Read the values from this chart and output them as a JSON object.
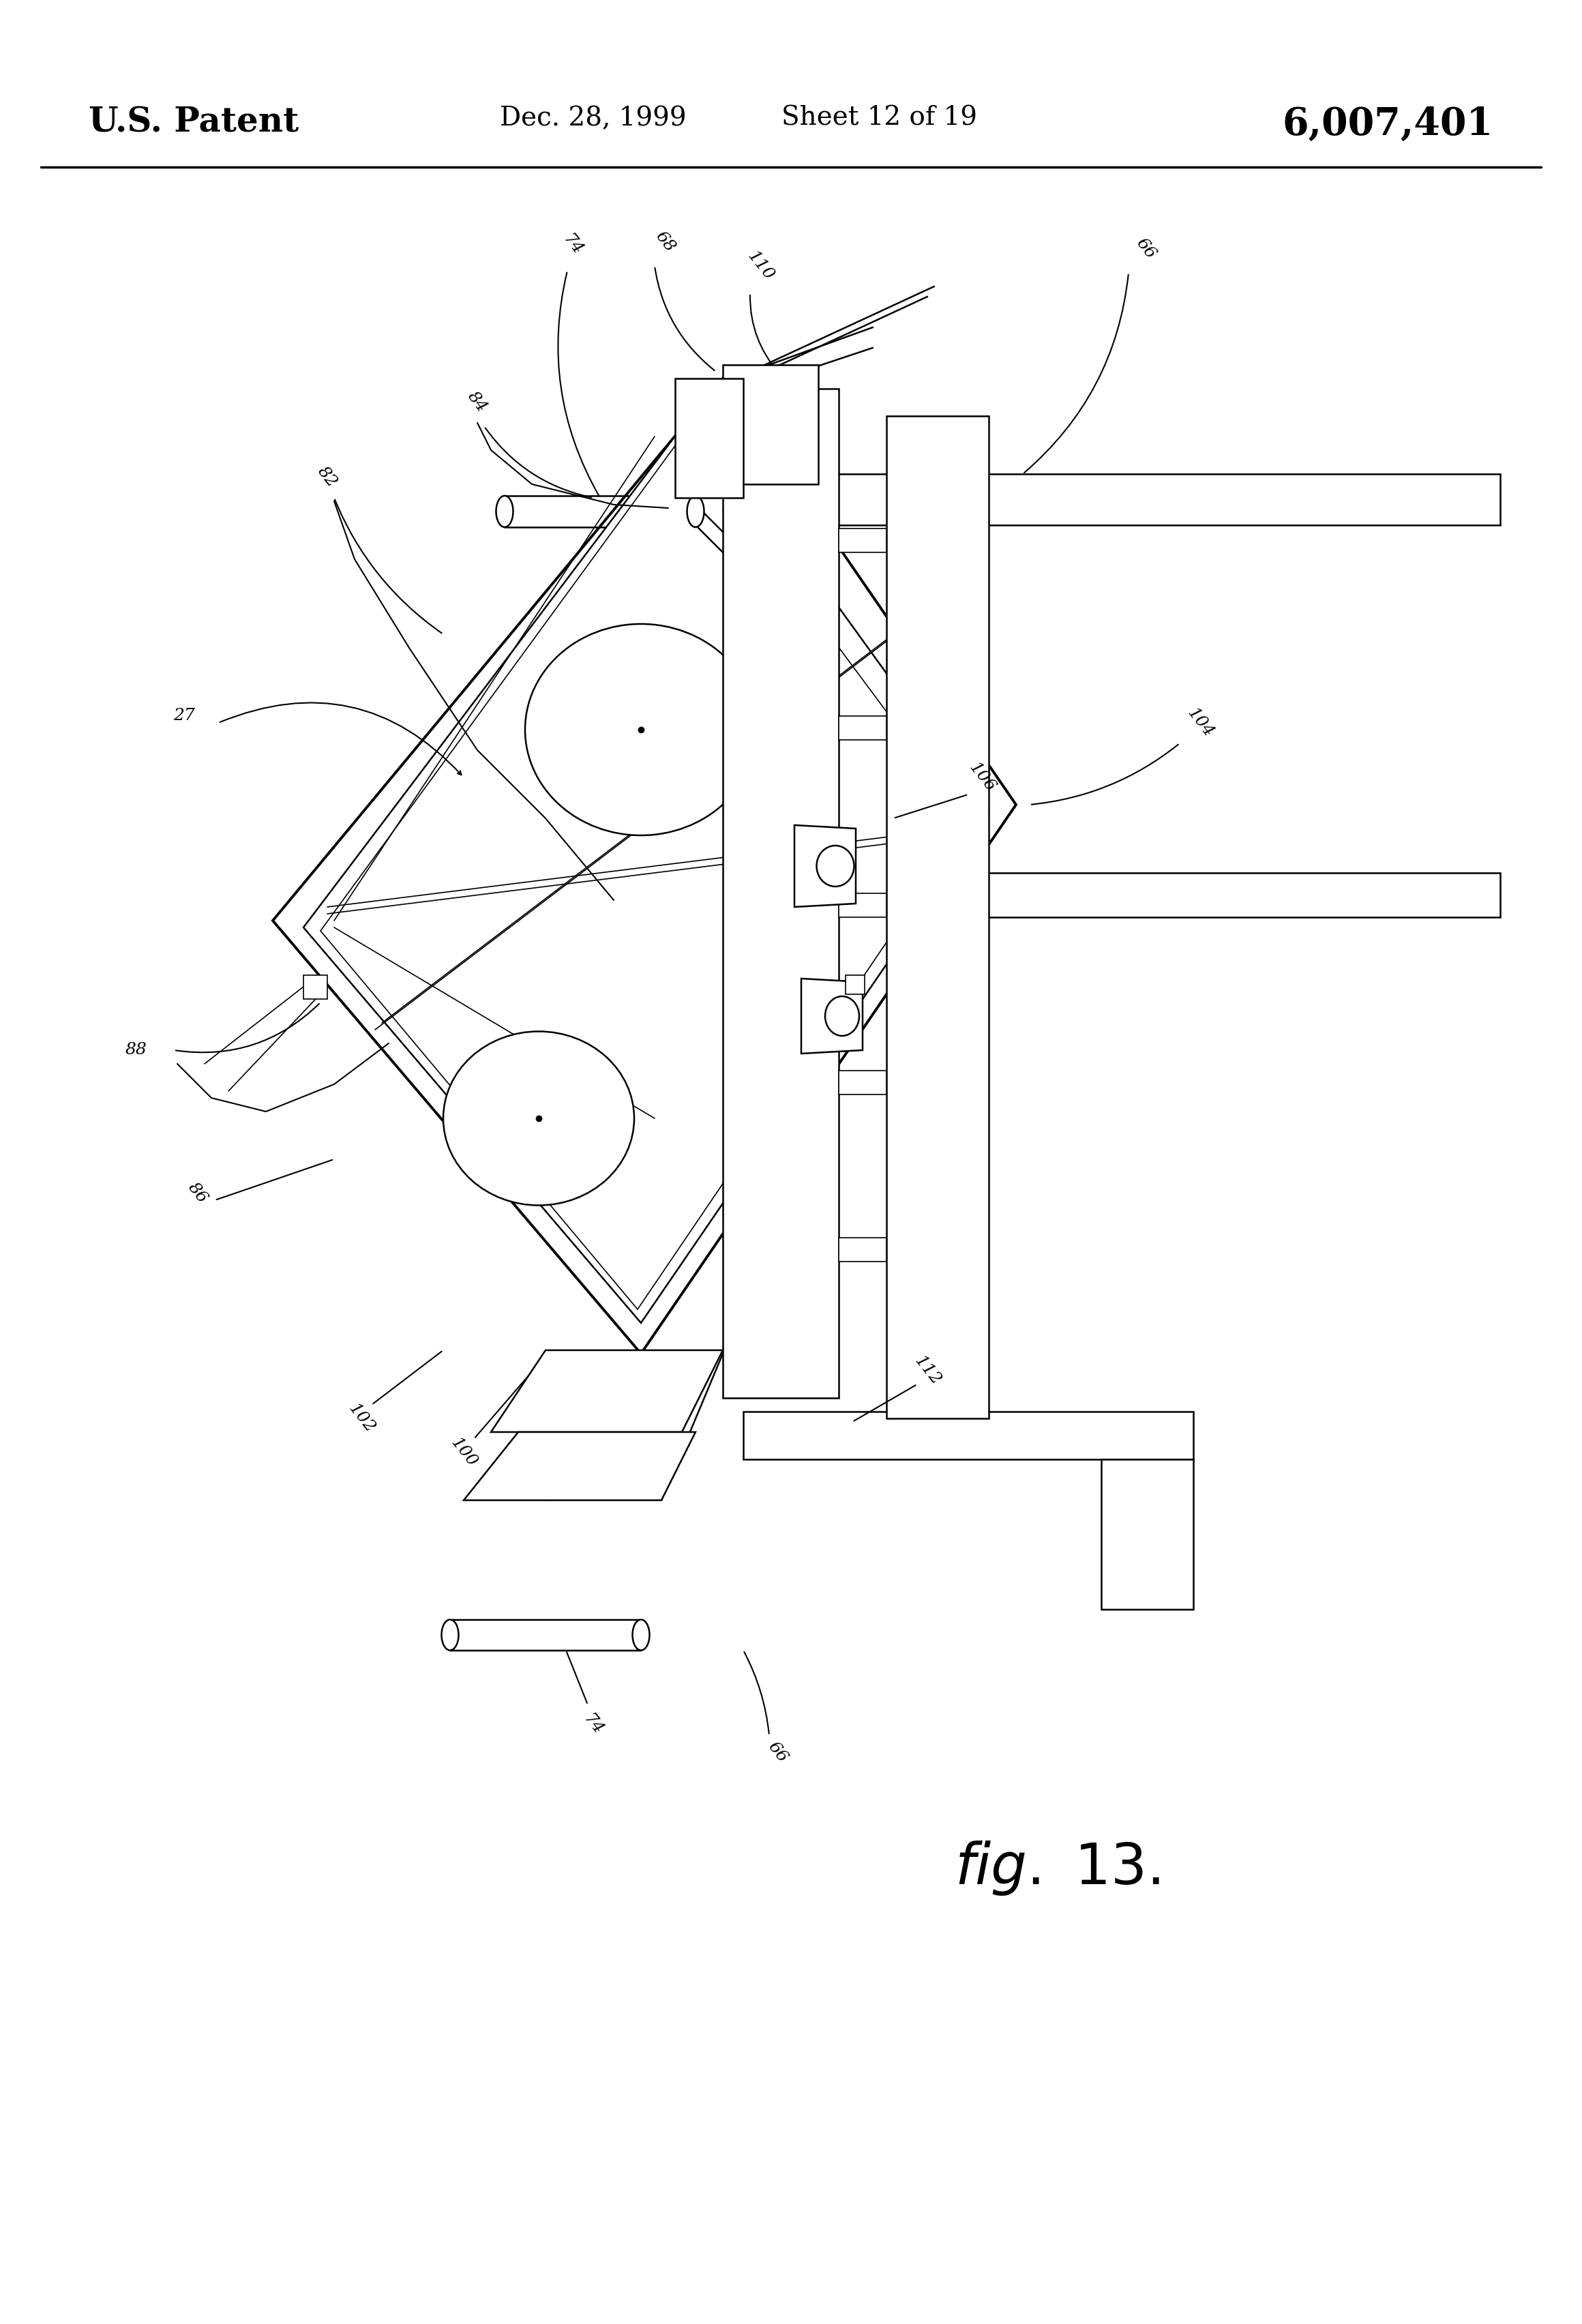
{
  "bg_color": "#ffffff",
  "line_color": "#000000",
  "header": {
    "left": "U.S. Patent",
    "center_date": "Dec. 28, 1999",
    "center_sheet": "Sheet 12 of 19",
    "right": "6,007,401"
  },
  "fig_label": "fig. 13.",
  "lw_thick": 2.8,
  "lw_med": 1.8,
  "lw_thin": 1.2,
  "label_fs": 18,
  "label_rot": -52
}
